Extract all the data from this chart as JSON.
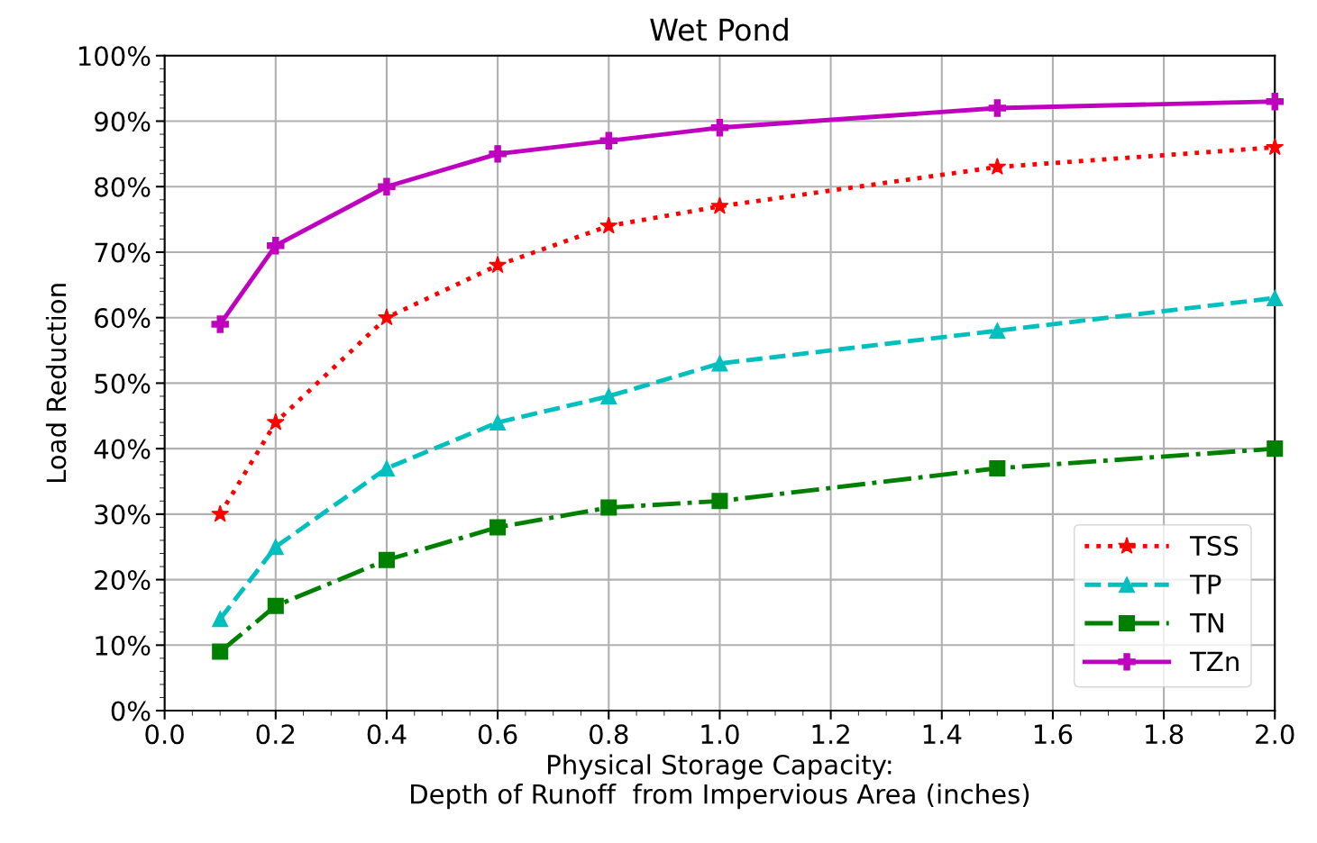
{
  "chart_data": {
    "type": "line",
    "title": "Wet Pond",
    "xlabel": "Physical Storage Capacity:\nDepth of Runoff  from Impervious Area (inches)",
    "ylabel": "Load Reduction",
    "x": [
      0.1,
      0.2,
      0.4,
      0.6,
      0.8,
      1.0,
      1.5,
      2.0
    ],
    "series": [
      {
        "name": "TSS",
        "color": "#ff0000",
        "marker": "star",
        "line_style": "dotted",
        "values": [
          30,
          44,
          60,
          68,
          74,
          77,
          83,
          86
        ]
      },
      {
        "name": "TP",
        "color": "#00bfbf",
        "marker": "triangle",
        "line_style": "dashed",
        "values": [
          14,
          25,
          37,
          44,
          48,
          53,
          58,
          63
        ]
      },
      {
        "name": "TN",
        "color": "#008000",
        "marker": "square",
        "line_style": "dashdot",
        "values": [
          9,
          16,
          23,
          28,
          31,
          32,
          37,
          40
        ]
      },
      {
        "name": "TZn",
        "color": "#bf00bf",
        "marker": "cross",
        "line_style": "solid",
        "values": [
          59,
          71,
          80,
          85,
          87,
          89,
          92,
          93
        ]
      }
    ],
    "xlim": [
      0,
      2
    ],
    "ylim": [
      0,
      100
    ],
    "xticks": [
      {
        "value": 0,
        "label": "0.0"
      },
      {
        "value": 0.2,
        "label": "0.2"
      },
      {
        "value": 0.4,
        "label": "0.4"
      },
      {
        "value": 0.6,
        "label": "0.6"
      },
      {
        "value": 0.8,
        "label": "0.8"
      },
      {
        "value": 1,
        "label": "1.0"
      },
      {
        "value": 1.2,
        "label": "1.2"
      },
      {
        "value": 1.4,
        "label": "1.4"
      },
      {
        "value": 1.6,
        "label": "1.6"
      },
      {
        "value": 1.8,
        "label": "1.8"
      },
      {
        "value": 2,
        "label": "2.0"
      }
    ],
    "yticks": [
      {
        "value": 0,
        "label": "0%"
      },
      {
        "value": 10,
        "label": "10%"
      },
      {
        "value": 20,
        "label": "20%"
      },
      {
        "value": 30,
        "label": "30%"
      },
      {
        "value": 40,
        "label": "40%"
      },
      {
        "value": 50,
        "label": "50%"
      },
      {
        "value": 60,
        "label": "60%"
      },
      {
        "value": 70,
        "label": "70%"
      },
      {
        "value": 80,
        "label": "80%"
      },
      {
        "value": 90,
        "label": "90%"
      },
      {
        "value": 100,
        "label": "100%"
      }
    ],
    "grid": true,
    "legend": "bottom right"
  }
}
